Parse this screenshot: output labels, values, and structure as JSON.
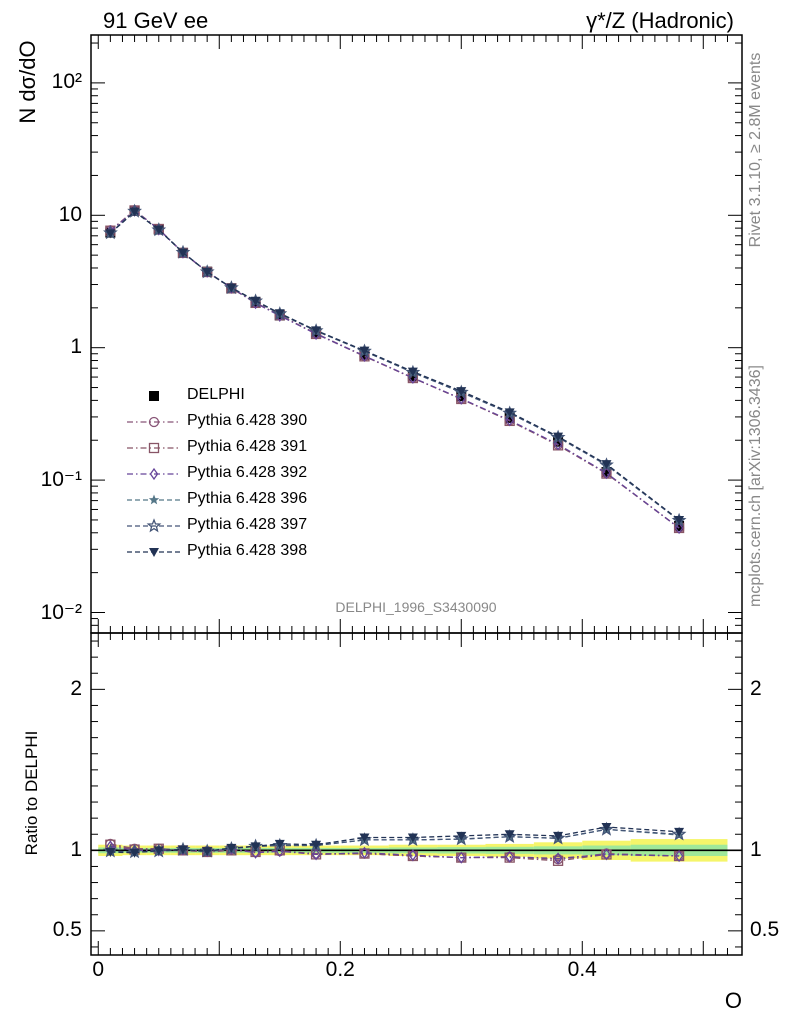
{
  "header": {
    "left": "91 GeV ee",
    "right": "γ*/Z (Hadronic)",
    "side_top": "Rivet 3.1.10, ≥ 2.8M events",
    "side_bottom": "mcplots.cern.ch [arXiv:1306.3436]"
  },
  "chart_data": [
    {
      "type": "line",
      "panel": "main",
      "ylabel": "N dσ/dO",
      "yscale": "log",
      "ylim": [
        0.007,
        230
      ],
      "xlim": [
        -0.006,
        0.532
      ],
      "yticks": [
        {
          "value": 0.01,
          "label": "10⁻²"
        },
        {
          "value": 0.1,
          "label": "10⁻¹"
        },
        {
          "value": 1,
          "label": "1"
        },
        {
          "value": 10,
          "label": "10"
        },
        {
          "value": 100,
          "label": "10²"
        }
      ],
      "annotation": "DELPHI_1996_S3430090",
      "legend_position": "center-left",
      "x": [
        0.01,
        0.03,
        0.05,
        0.07,
        0.09,
        0.11,
        0.13,
        0.15,
        0.18,
        0.22,
        0.26,
        0.3,
        0.34,
        0.38,
        0.42,
        0.48
      ],
      "series": [
        {
          "name": "DELPHI",
          "style": "data",
          "color": "#000000",
          "marker": "square-filled",
          "values": [
            7.4,
            10.8,
            7.8,
            5.2,
            3.75,
            2.8,
            2.2,
            1.75,
            1.3,
            0.88,
            0.61,
            0.43,
            0.295,
            0.195,
            0.115,
            0.045
          ]
        },
        {
          "name": "Pythia 6.428 390",
          "style": "dashdot",
          "color": "#885577",
          "marker": "circle-open",
          "values": [
            7.7,
            10.9,
            7.85,
            5.22,
            3.74,
            2.82,
            2.19,
            1.75,
            1.28,
            0.865,
            0.59,
            0.41,
            0.282,
            0.185,
            0.113,
            0.0435
          ]
        },
        {
          "name": "Pythia 6.428 391",
          "style": "dashdot",
          "color": "#885566",
          "marker": "square-open",
          "values": [
            7.65,
            10.88,
            7.88,
            5.2,
            3.73,
            2.81,
            2.18,
            1.76,
            1.27,
            0.86,
            0.59,
            0.41,
            0.28,
            0.183,
            0.112,
            0.0435
          ]
        },
        {
          "name": "Pythia 6.428 392",
          "style": "dashdot",
          "color": "#664499",
          "marker": "diamond-open",
          "values": [
            7.6,
            10.85,
            7.82,
            5.23,
            3.75,
            2.83,
            2.17,
            1.74,
            1.27,
            0.865,
            0.592,
            0.412,
            0.283,
            0.186,
            0.113,
            0.0435
          ]
        },
        {
          "name": "Pythia 6.428 396",
          "style": "dashed",
          "color": "#557788",
          "marker": "star-filled",
          "values": [
            7.35,
            10.7,
            7.75,
            5.25,
            3.72,
            2.84,
            2.26,
            1.8,
            1.34,
            0.94,
            0.65,
            0.46,
            0.32,
            0.21,
            0.13,
            0.0495
          ]
        },
        {
          "name": "Pythia 6.428 397",
          "style": "dashed",
          "color": "#445577",
          "marker": "star-open",
          "values": [
            7.35,
            10.7,
            7.75,
            5.24,
            3.73,
            2.83,
            2.25,
            1.8,
            1.34,
            0.94,
            0.65,
            0.46,
            0.32,
            0.21,
            0.13,
            0.0495
          ]
        },
        {
          "name": "Pythia 6.428 398",
          "style": "dashed",
          "color": "#223355",
          "marker": "triangle-down-filled",
          "values": [
            7.3,
            10.65,
            7.8,
            5.22,
            3.74,
            2.84,
            2.26,
            1.82,
            1.35,
            0.95,
            0.66,
            0.47,
            0.325,
            0.213,
            0.132,
            0.05
          ]
        }
      ]
    },
    {
      "type": "line",
      "panel": "ratio",
      "ylabel": "Ratio to DELPHI",
      "xlabel": "O",
      "ylim": [
        0.35,
        2.35
      ],
      "xlim": [
        -0.006,
        0.532
      ],
      "yticks": [
        {
          "value": 0.5,
          "label": "0.5"
        },
        {
          "value": 1,
          "label": "1"
        },
        {
          "value": 2,
          "label": "2"
        }
      ],
      "xticks": [
        {
          "value": 0,
          "label": "0"
        },
        {
          "value": 0.2,
          "label": "0.2"
        },
        {
          "value": 0.4,
          "label": "0.4"
        }
      ],
      "bins": [
        [
          0.0,
          0.02
        ],
        [
          0.02,
          0.04
        ],
        [
          0.04,
          0.06
        ],
        [
          0.06,
          0.08
        ],
        [
          0.08,
          0.1
        ],
        [
          0.1,
          0.12
        ],
        [
          0.12,
          0.14
        ],
        [
          0.14,
          0.16
        ],
        [
          0.16,
          0.2
        ],
        [
          0.2,
          0.24
        ],
        [
          0.24,
          0.28
        ],
        [
          0.28,
          0.32
        ],
        [
          0.32,
          0.36
        ],
        [
          0.36,
          0.4
        ],
        [
          0.4,
          0.44
        ],
        [
          0.44,
          0.52
        ]
      ],
      "band_outer": [
        0.035,
        0.03,
        0.03,
        0.03,
        0.03,
        0.03,
        0.03,
        0.03,
        0.03,
        0.03,
        0.035,
        0.035,
        0.04,
        0.05,
        0.06,
        0.07
      ],
      "band_inner": [
        0.018,
        0.015,
        0.015,
        0.015,
        0.015,
        0.015,
        0.015,
        0.015,
        0.015,
        0.015,
        0.018,
        0.02,
        0.022,
        0.025,
        0.03,
        0.035
      ],
      "x": [
        0.01,
        0.03,
        0.05,
        0.07,
        0.09,
        0.11,
        0.13,
        0.15,
        0.18,
        0.22,
        0.26,
        0.3,
        0.34,
        0.38,
        0.42,
        0.48
      ],
      "series": [
        {
          "name": "Pythia 6.428 390",
          "values": [
            1.04,
            1.01,
            1.01,
            1.0,
            0.995,
            1.005,
            0.99,
            0.995,
            0.98,
            0.98,
            0.965,
            0.955,
            0.96,
            0.945,
            0.98,
            0.965
          ]
        },
        {
          "name": "Pythia 6.428 391",
          "values": [
            1.035,
            1.005,
            1.01,
            1.0,
            0.99,
            1.0,
            0.99,
            1.0,
            0.975,
            0.98,
            0.965,
            0.955,
            0.955,
            0.935,
            0.975,
            0.965
          ]
        },
        {
          "name": "Pythia 6.428 392",
          "values": [
            1.025,
            1.0,
            1.0,
            1.005,
            0.995,
            1.01,
            0.985,
            0.995,
            0.975,
            0.985,
            0.97,
            0.955,
            0.96,
            0.95,
            0.975,
            0.965
          ]
        },
        {
          "name": "Pythia 6.428 396",
          "values": [
            0.995,
            0.99,
            0.995,
            1.005,
            0.99,
            1.01,
            1.025,
            1.03,
            1.03,
            1.065,
            1.065,
            1.07,
            1.085,
            1.075,
            1.13,
            1.095
          ]
        },
        {
          "name": "Pythia 6.428 397",
          "values": [
            0.995,
            0.99,
            0.995,
            1.005,
            0.995,
            1.01,
            1.025,
            1.03,
            1.03,
            1.065,
            1.065,
            1.07,
            1.085,
            1.075,
            1.13,
            1.1
          ]
        },
        {
          "name": "Pythia 6.428 398",
          "values": [
            0.99,
            0.985,
            1.0,
            1.005,
            0.995,
            1.015,
            1.025,
            1.04,
            1.035,
            1.08,
            1.08,
            1.09,
            1.1,
            1.09,
            1.145,
            1.115
          ]
        }
      ]
    }
  ]
}
